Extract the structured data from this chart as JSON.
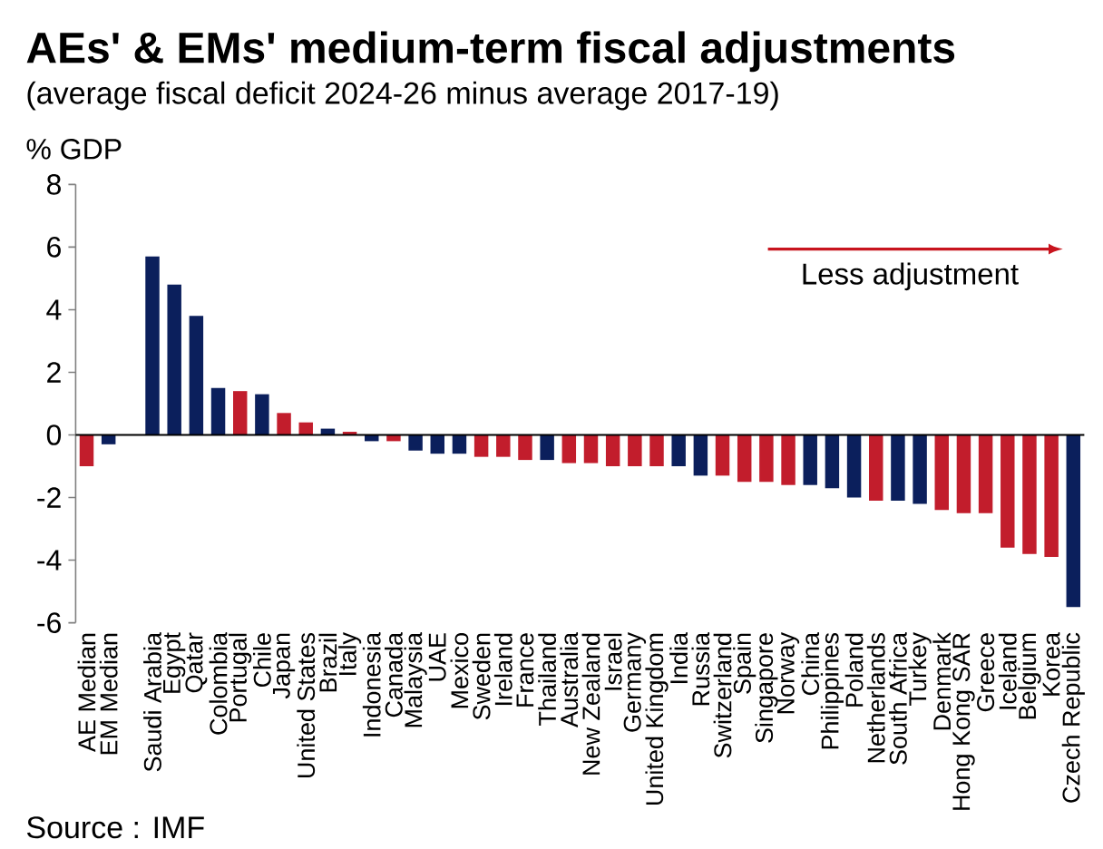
{
  "chart_data": {
    "type": "bar",
    "title": "AEs' & EMs' medium-term fiscal adjustments",
    "subtitle": "(average fiscal deficit 2024-26 minus average 2017-19)",
    "ylabel": "% GDP",
    "categories": [
      "AE Median",
      "EM Median",
      null,
      "Saudi Arabia",
      "Egypt",
      "Qatar",
      "Colombia",
      "Portugal",
      "Chile",
      "Japan",
      "United States",
      "Brazil",
      "Italy",
      "Indonesia",
      "Canada",
      "Malaysia",
      "UAE",
      "Mexico",
      "Sweden",
      "Ireland",
      "France",
      "Thailand",
      "Australia",
      "New Zealand",
      "Israel",
      "Germany",
      "United Kingdom",
      "India",
      "Russia",
      "Switzerland",
      "Spain",
      "Singapore",
      "Norway",
      "China",
      "Philippines",
      "Poland",
      "Netherlands",
      "South Africa",
      "Turkey",
      "Denmark",
      "Hong Kong SAR",
      "Greece",
      "Iceland",
      "Belgium",
      "Korea",
      "Czech Republic"
    ],
    "values": [
      -1.0,
      -0.3,
      null,
      5.7,
      4.8,
      3.8,
      1.5,
      1.4,
      1.3,
      0.7,
      0.4,
      0.2,
      0.1,
      -0.2,
      -0.2,
      -0.5,
      -0.6,
      -0.6,
      -0.7,
      -0.7,
      -0.8,
      -0.8,
      -0.9,
      -0.9,
      -1.0,
      -1.0,
      -1.0,
      -1.0,
      -1.3,
      -1.3,
      -1.5,
      -1.5,
      -1.6,
      -1.6,
      -1.7,
      -2.0,
      -2.1,
      -2.1,
      -2.2,
      -2.4,
      -2.5,
      -2.5,
      -3.6,
      -3.8,
      -3.9,
      -5.5
    ],
    "colors": [
      "#c21d2c",
      "#0b1f5c",
      null,
      "#0b1f5c",
      "#0b1f5c",
      "#0b1f5c",
      "#0b1f5c",
      "#c21d2c",
      "#0b1f5c",
      "#c21d2c",
      "#c21d2c",
      "#0b1f5c",
      "#c21d2c",
      "#0b1f5c",
      "#c21d2c",
      "#0b1f5c",
      "#0b1f5c",
      "#0b1f5c",
      "#c21d2c",
      "#c21d2c",
      "#c21d2c",
      "#0b1f5c",
      "#c21d2c",
      "#c21d2c",
      "#c21d2c",
      "#c21d2c",
      "#c21d2c",
      "#0b1f5c",
      "#0b1f5c",
      "#c21d2c",
      "#c21d2c",
      "#c21d2c",
      "#c21d2c",
      "#0b1f5c",
      "#0b1f5c",
      "#0b1f5c",
      "#c21d2c",
      "#0b1f5c",
      "#0b1f5c",
      "#c21d2c",
      "#c21d2c",
      "#c21d2c",
      "#c21d2c",
      "#c21d2c",
      "#c21d2c",
      "#0b1f5c"
    ],
    "ylim": [
      -6,
      8
    ],
    "yticks": [
      -6,
      -4,
      -2,
      0,
      2,
      4,
      6,
      8
    ],
    "annotations": [
      "Less adjustment",
      "Source : IMF"
    ]
  }
}
